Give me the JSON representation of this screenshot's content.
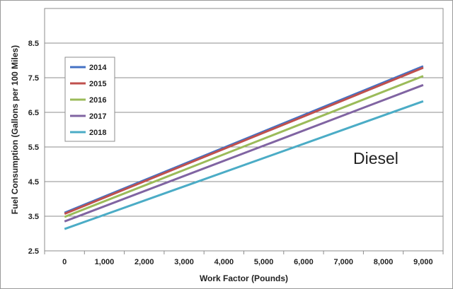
{
  "chart_data": {
    "type": "line",
    "title": "",
    "xlabel": "Work Factor (Pounds)",
    "ylabel": "Fuel Consumption (Gallons per 100 Miles)",
    "x": [
      0,
      9000
    ],
    "xlim": [
      -500,
      9500
    ],
    "ylim": [
      2.5,
      9.5
    ],
    "xticks": [
      0,
      1000,
      2000,
      3000,
      4000,
      5000,
      6000,
      7000,
      8000,
      9000
    ],
    "xtick_labels": [
      "0",
      "1,000",
      "2,000",
      "3,000",
      "4,000",
      "5,000",
      "6,000",
      "7,000",
      "8,000",
      "9,000"
    ],
    "yticks": [
      2.5,
      3.5,
      4.5,
      5.5,
      6.5,
      7.5,
      8.5
    ],
    "ytick_labels": [
      "2.5",
      "3.5",
      "4.5",
      "5.5",
      "6.5",
      "7.5",
      "8.5"
    ],
    "grid": "horizontal",
    "legend_position": "left",
    "annotation": "Diesel",
    "series": [
      {
        "name": "2014",
        "color": "#4472C4",
        "values": [
          3.6,
          7.83
        ]
      },
      {
        "name": "2015",
        "color": "#C0504D",
        "values": [
          3.57,
          7.79
        ]
      },
      {
        "name": "2016",
        "color": "#9BBB59",
        "values": [
          3.48,
          7.55
        ]
      },
      {
        "name": "2017",
        "color": "#8064A2",
        "values": [
          3.35,
          7.29
        ]
      },
      {
        "name": "2018",
        "color": "#4BACC6",
        "values": [
          3.13,
          6.82
        ]
      }
    ]
  }
}
